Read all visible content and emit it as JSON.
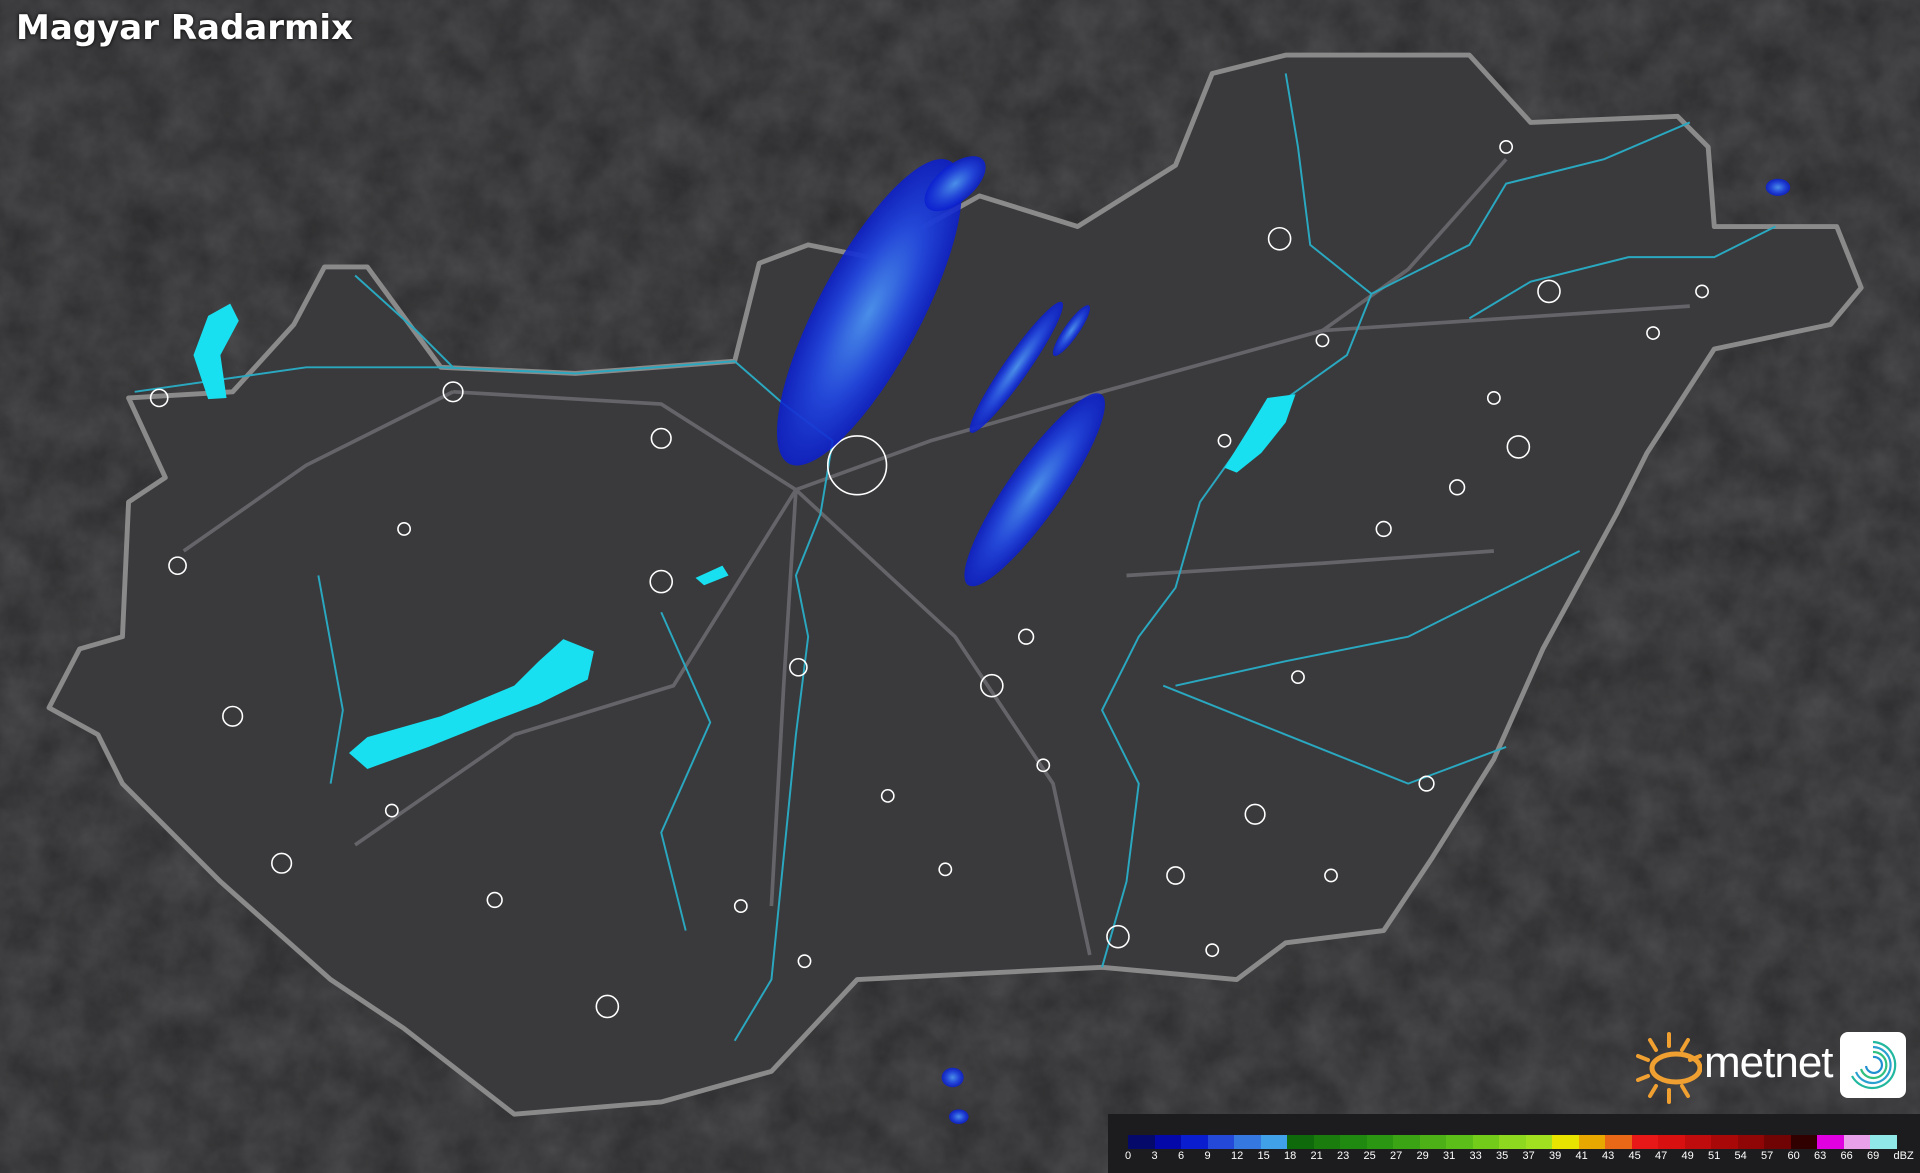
{
  "title": "Magyar Radarmix",
  "legend": {
    "unit": "dBZ",
    "labels": [
      "0",
      "3",
      "6",
      "9",
      "12",
      "15",
      "18",
      "21",
      "23",
      "25",
      "27",
      "29",
      "31",
      "33",
      "35",
      "37",
      "39",
      "41",
      "43",
      "45",
      "47",
      "49",
      "51",
      "54",
      "57",
      "60",
      "63",
      "66",
      "69"
    ],
    "colors": [
      "#050a6a",
      "#0408a8",
      "#0a1ed0",
      "#2448d8",
      "#3478e0",
      "#40a0e8",
      "#0f6a0c",
      "#1a7c0c",
      "#208a10",
      "#2a9612",
      "#3aa414",
      "#4cb016",
      "#5cbe18",
      "#74cc1a",
      "#8ed820",
      "#a0e020",
      "#e8e400",
      "#e8a800",
      "#e86818",
      "#e81818",
      "#d81010",
      "#c00c0c",
      "#a80808",
      "#900606",
      "#700404",
      "#300000",
      "#e000e0",
      "#e8a0e8",
      "#90e8e8"
    ]
  },
  "logo": {
    "brand": "metnet",
    "sun_color": "#f0a030"
  },
  "map": {
    "country": "Hungary",
    "lake_color": "#19e0f0",
    "river_color": "#2aa8c0",
    "border_color": "#8a8a8a",
    "radar_palette": [
      "#0a1ed0",
      "#2448d8",
      "#3478e0"
    ]
  }
}
